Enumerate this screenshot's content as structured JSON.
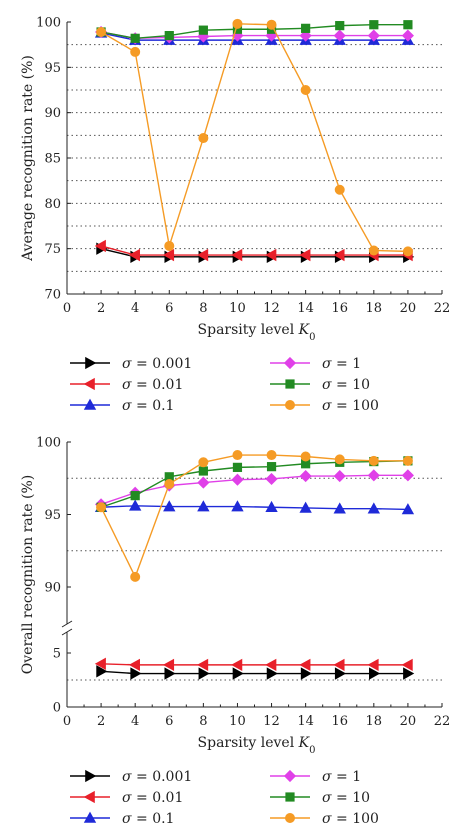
{
  "chart_data": [
    {
      "type": "line",
      "title": "",
      "xlabel": "Sparsity level",
      "xlabel_symbol": "K",
      "xlabel_subscript": "0",
      "ylabel": "Average recognition rate (%)",
      "xlim": [
        0,
        22
      ],
      "ylim": [
        70,
        100
      ],
      "x_ticks": [
        "0",
        "2",
        "4",
        "6",
        "8",
        "10",
        "12",
        "14",
        "16",
        "18",
        "20",
        "22"
      ],
      "y_ticks": [
        "70",
        "75",
        "80",
        "85",
        "90",
        "95",
        "100"
      ],
      "grid": "horizontal dotted",
      "x": [
        2,
        4,
        6,
        8,
        10,
        12,
        14,
        16,
        18,
        20
      ],
      "series": [
        {
          "name": "σ = 0.001",
          "color": "#000000",
          "marker": "triangle-right",
          "values": [
            75.0,
            74.1,
            74.1,
            74.1,
            74.1,
            74.1,
            74.1,
            74.1,
            74.1,
            74.1
          ]
        },
        {
          "name": "σ = 0.01",
          "color": "#e8202a",
          "marker": "triangle-left",
          "values": [
            75.3,
            74.3,
            74.3,
            74.3,
            74.3,
            74.3,
            74.3,
            74.3,
            74.3,
            74.3
          ]
        },
        {
          "name": "σ = 0.1",
          "color": "#1f2ad8",
          "marker": "triangle-up",
          "values": [
            98.8,
            98.0,
            98.0,
            98.0,
            98.0,
            98.0,
            98.0,
            98.0,
            98.0,
            98.0
          ]
        },
        {
          "name": "σ = 1",
          "color": "#e040e8",
          "marker": "diamond",
          "values": [
            98.9,
            98.2,
            98.3,
            98.4,
            98.5,
            98.5,
            98.5,
            98.5,
            98.5,
            98.5
          ]
        },
        {
          "name": "σ = 10",
          "color": "#228b22",
          "marker": "square",
          "values": [
            98.9,
            98.2,
            98.5,
            99.1,
            99.2,
            99.2,
            99.3,
            99.6,
            99.7,
            99.7
          ]
        },
        {
          "name": "σ = 100",
          "color": "#f59b25",
          "marker": "circle",
          "values": [
            98.9,
            96.7,
            75.3,
            87.2,
            99.8,
            99.7,
            92.5,
            81.5,
            74.8,
            74.7
          ]
        }
      ]
    },
    {
      "type": "line",
      "title": "",
      "xlabel": "Sparsity level",
      "xlabel_symbol": "K",
      "xlabel_subscript": "0",
      "ylabel": "Overall recognition rate (%)",
      "xlim": [
        0,
        22
      ],
      "ylim": [
        0,
        100
      ],
      "y_axis_break": [
        7,
        87
      ],
      "x_ticks": [
        "0",
        "2",
        "4",
        "6",
        "8",
        "10",
        "12",
        "14",
        "16",
        "18",
        "20",
        "22"
      ],
      "y_ticks": [
        "0",
        "5",
        "90",
        "95",
        "100"
      ],
      "grid": "horizontal dotted",
      "x": [
        2,
        4,
        6,
        8,
        10,
        12,
        14,
        16,
        18,
        20
      ],
      "series": [
        {
          "name": "σ = 0.001",
          "color": "#000000",
          "marker": "triangle-right",
          "values": [
            3.3,
            3.1,
            3.1,
            3.1,
            3.1,
            3.1,
            3.1,
            3.1,
            3.1,
            3.1
          ]
        },
        {
          "name": "σ = 0.01",
          "color": "#e8202a",
          "marker": "triangle-left",
          "values": [
            4.0,
            3.9,
            3.9,
            3.9,
            3.9,
            3.9,
            3.9,
            3.9,
            3.9,
            3.9
          ]
        },
        {
          "name": "σ = 0.1",
          "color": "#1f2ad8",
          "marker": "triangle-up",
          "values": [
            95.5,
            95.6,
            95.55,
            95.55,
            95.55,
            95.5,
            95.45,
            95.4,
            95.4,
            95.35
          ]
        },
        {
          "name": "σ = 1",
          "color": "#e040e8",
          "marker": "diamond",
          "values": [
            95.7,
            96.5,
            97.0,
            97.2,
            97.4,
            97.45,
            97.65,
            97.65,
            97.7,
            97.7
          ]
        },
        {
          "name": "σ = 10",
          "color": "#228b22",
          "marker": "square",
          "values": [
            95.5,
            96.3,
            97.6,
            98.0,
            98.25,
            98.3,
            98.5,
            98.6,
            98.65,
            98.7
          ]
        },
        {
          "name": "σ = 100",
          "color": "#f59b25",
          "marker": "circle",
          "values": [
            95.5,
            90.7,
            97.1,
            98.6,
            99.1,
            99.1,
            99.0,
            98.8,
            98.7,
            98.7
          ]
        }
      ]
    }
  ]
}
